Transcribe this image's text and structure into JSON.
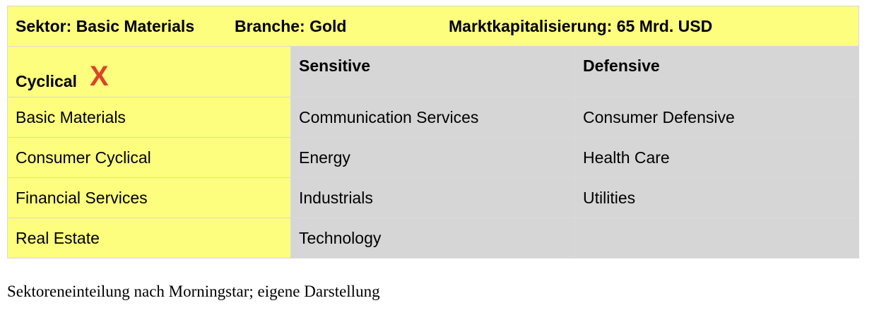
{
  "header": {
    "sector": "Sektor: Basic Materials",
    "branche": "Branche: Gold",
    "market_cap": "Marktkapitalisierung: 65 Mrd. USD"
  },
  "groups": {
    "cyclical": "Cyclical",
    "cyclical_mark": "X",
    "sensitive": "Sensitive",
    "defensive": "Defensive"
  },
  "rows": [
    {
      "cyclical": "Basic Materials",
      "sensitive": "Communication Services",
      "defensive": "Consumer Defensive"
    },
    {
      "cyclical": "Consumer Cyclical",
      "sensitive": "Energy",
      "defensive": "Health Care"
    },
    {
      "cyclical": "Financial Services",
      "sensitive": "Industrials",
      "defensive": "Utilities"
    },
    {
      "cyclical": "Real Estate",
      "sensitive": "Technology",
      "defensive": ""
    }
  ],
  "caption": "Sektoreneinteilung nach Morningstar; eigene Darstellung",
  "colors": {
    "highlight": "#fdfd7e",
    "neutral": "#d6d6d6",
    "mark": "#d8452b"
  }
}
